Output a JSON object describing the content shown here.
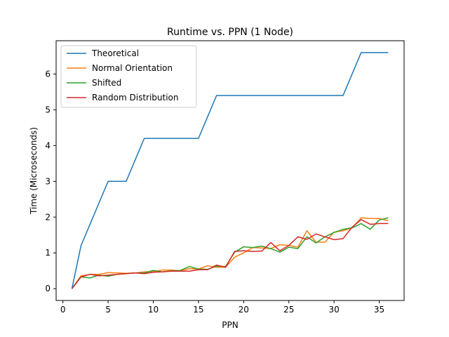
{
  "chart_data": {
    "type": "line",
    "title": "Runtime vs. PPN (1 Node)",
    "xlabel": "PPN",
    "ylabel": "Time (Microseconds)",
    "xlim": [
      -0.75,
      37.75
    ],
    "ylim": [
      -0.33,
      6.93
    ],
    "xticks": [
      0,
      5,
      10,
      15,
      20,
      25,
      30,
      35
    ],
    "yticks": [
      0,
      1,
      2,
      3,
      4,
      5,
      6
    ],
    "grid": false,
    "legend_position": "top-left",
    "x": [
      1,
      2,
      3,
      4,
      5,
      6,
      7,
      8,
      9,
      10,
      11,
      12,
      13,
      14,
      15,
      16,
      17,
      18,
      19,
      20,
      21,
      22,
      23,
      24,
      25,
      26,
      27,
      28,
      29,
      30,
      31,
      32,
      33,
      34,
      35,
      36
    ],
    "series": [
      {
        "name": "Theoretical",
        "color": "#1f77b4",
        "values": [
          0,
          1.2,
          1.8,
          2.4,
          3.0,
          3.0,
          3.0,
          3.6,
          4.2,
          4.2,
          4.2,
          4.2,
          4.2,
          4.2,
          4.2,
          4.8,
          5.4,
          5.4,
          5.4,
          5.4,
          5.4,
          5.4,
          5.4,
          5.4,
          5.4,
          5.4,
          5.4,
          5.4,
          5.4,
          5.4,
          5.4,
          6.0,
          6.6,
          6.6,
          6.6,
          6.6
        ]
      },
      {
        "name": "Normal Orientation",
        "color": "#ff7f0e",
        "values": [
          0,
          0.36,
          0.4,
          0.4,
          0.45,
          0.44,
          0.43,
          0.44,
          0.47,
          0.48,
          0.52,
          0.52,
          0.5,
          0.56,
          0.55,
          0.64,
          0.6,
          0.6,
          0.88,
          1.0,
          1.15,
          1.14,
          1.12,
          1.23,
          1.21,
          1.16,
          1.62,
          1.3,
          1.3,
          1.58,
          1.62,
          1.7,
          1.98,
          1.96,
          1.96,
          1.9
        ]
      },
      {
        "name": "Shifted",
        "color": "#2ca02c",
        "values": [
          0,
          0.33,
          0.3,
          0.38,
          0.35,
          0.4,
          0.42,
          0.44,
          0.44,
          0.51,
          0.47,
          0.5,
          0.51,
          0.62,
          0.55,
          0.54,
          0.63,
          0.62,
          1.02,
          1.17,
          1.15,
          1.19,
          1.12,
          1.02,
          1.16,
          1.12,
          1.45,
          1.28,
          1.45,
          1.57,
          1.66,
          1.7,
          1.82,
          1.66,
          1.92,
          1.98
        ]
      },
      {
        "name": "Random Distribution",
        "color": "#d62728",
        "values": [
          0,
          0.33,
          0.4,
          0.36,
          0.38,
          0.4,
          0.42,
          0.44,
          0.42,
          0.46,
          0.47,
          0.49,
          0.49,
          0.49,
          0.53,
          0.53,
          0.66,
          0.6,
          1.04,
          1.06,
          1.04,
          1.05,
          1.29,
          1.06,
          1.21,
          1.45,
          1.38,
          1.53,
          1.45,
          1.37,
          1.4,
          1.72,
          1.93,
          1.8,
          1.82,
          1.82
        ]
      }
    ]
  }
}
